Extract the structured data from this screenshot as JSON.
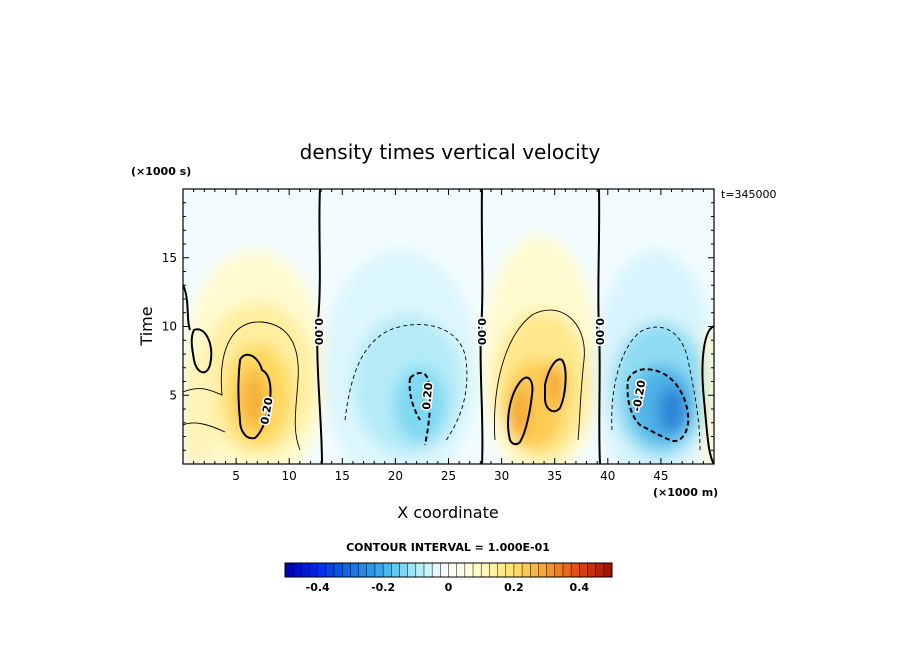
{
  "chart_data": {
    "type": "heatmap",
    "title": "density times vertical velocity",
    "xlabel": "X coordinate",
    "ylabel": "Time",
    "x_unit": "(×1000 m)",
    "y_unit": "(×1000 s)",
    "time_label": "t=345000",
    "xlim": [
      0,
      50
    ],
    "ylim": [
      0,
      20
    ],
    "x_ticks": [
      "5",
      "10",
      "15",
      "20",
      "25",
      "30",
      "35",
      "40",
      "45"
    ],
    "y_ticks": [
      "5",
      "10",
      "15"
    ],
    "contour_interval_label": "CONTOUR INTERVAL = 1.000E-01",
    "contour_labels": [
      "0.20",
      "0.20",
      "0.00",
      "0.00",
      "0.00",
      "-0.20"
    ],
    "colorbar": {
      "min": -0.5,
      "max": 0.5,
      "tick_labels": [
        "-0.4",
        "-0.2",
        "0",
        "0.2",
        "0.4"
      ]
    },
    "features": [
      {
        "x": 6.5,
        "y": 5,
        "value": 0.3
      },
      {
        "x": 22,
        "y": 4,
        "value": -0.25
      },
      {
        "x": 32,
        "y": 4,
        "value": 0.3
      },
      {
        "x": 45,
        "y": 4,
        "value": -0.35
      }
    ],
    "zero_lines_x": [
      13,
      28,
      39
    ]
  }
}
